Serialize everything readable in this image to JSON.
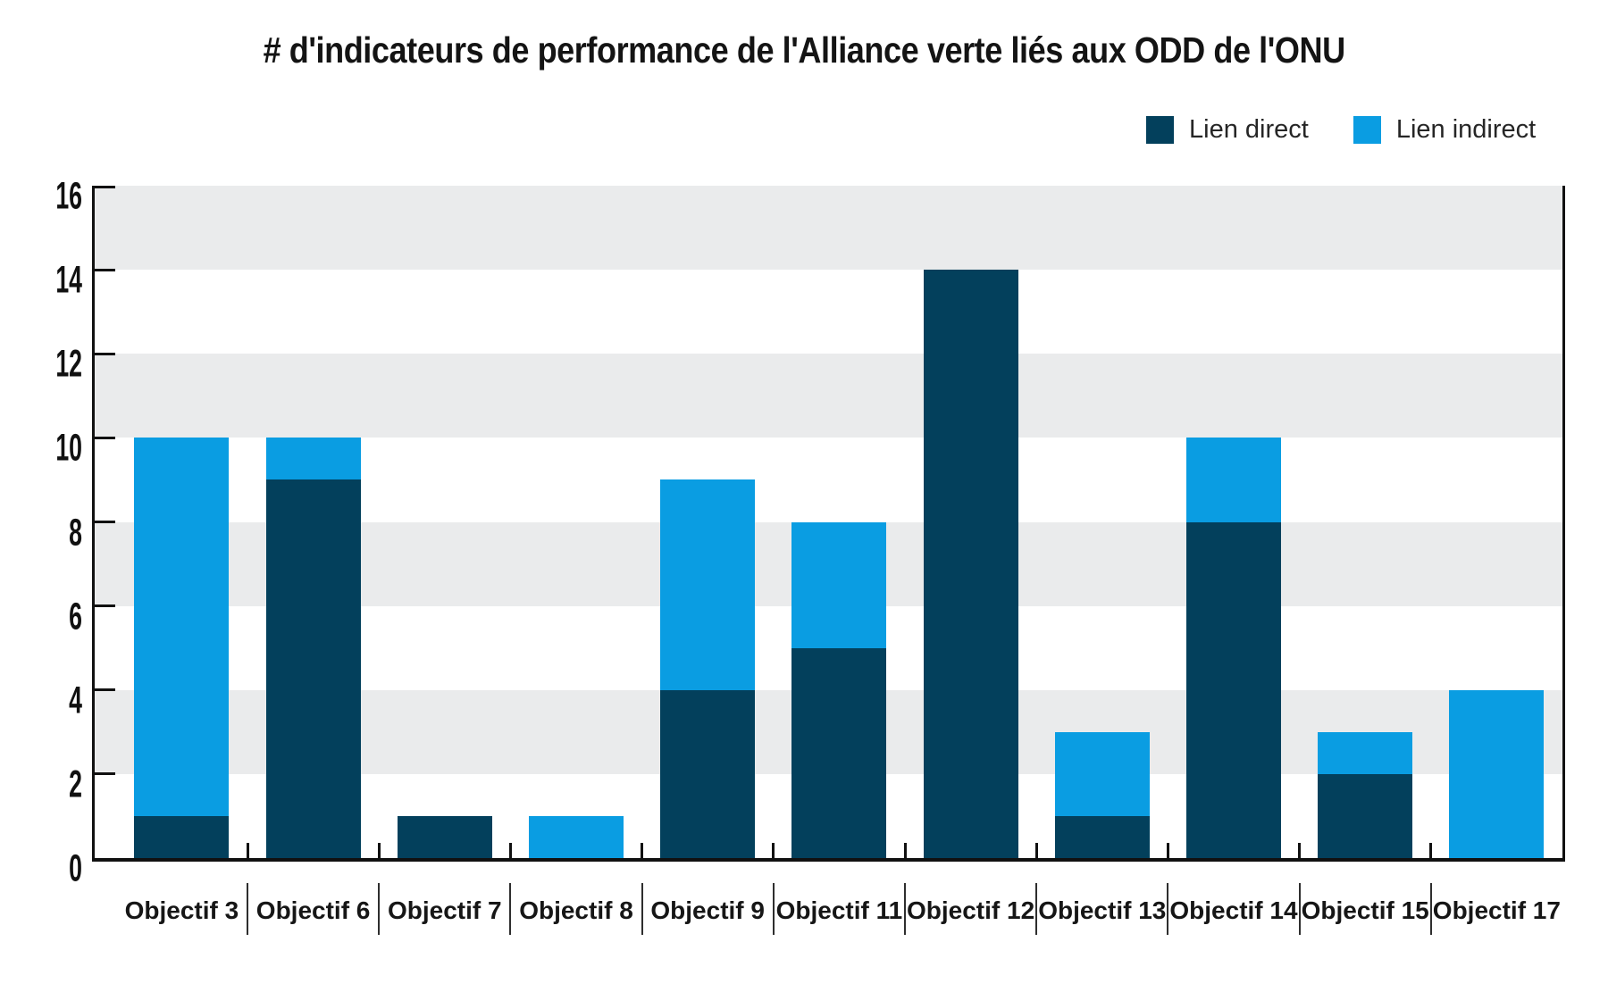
{
  "chart_data": {
    "type": "bar",
    "stacked": true,
    "title": "# d'indicateurs de performance de l'Alliance verte liés aux ODD de l'ONU",
    "categories": [
      "Objectif 3",
      "Objectif 6",
      "Objectif 7",
      "Objectif 8",
      "Objectif 9",
      "Objectif 11",
      "Objectif 12",
      "Objectif 13",
      "Objectif 14",
      "Objectif 15",
      "Objectif 17"
    ],
    "series": [
      {
        "name": "Lien direct",
        "color": "#03405c",
        "values": [
          1,
          9,
          1,
          0,
          4,
          5,
          14,
          1,
          8,
          2,
          0
        ]
      },
      {
        "name": "Lien indirect",
        "color": "#0a9de2",
        "values": [
          9,
          1,
          0,
          1,
          5,
          3,
          0,
          2,
          2,
          1,
          4
        ]
      }
    ],
    "totals": [
      10,
      10,
      1,
      1,
      9,
      8,
      14,
      3,
      10,
      3,
      4
    ],
    "xlabel": "",
    "ylabel": "",
    "ylim": [
      0,
      16
    ],
    "ytick_step": 2,
    "yticks": [
      "0",
      "2",
      "4",
      "6",
      "8",
      "10",
      "12",
      "14",
      "16"
    ],
    "grid": "alternating horizontal gray bands at 2-4, 6-8, 10-12, 14-16",
    "band_color": "#eaebec",
    "axis_color": "#111111",
    "legend_position": "top-right"
  }
}
